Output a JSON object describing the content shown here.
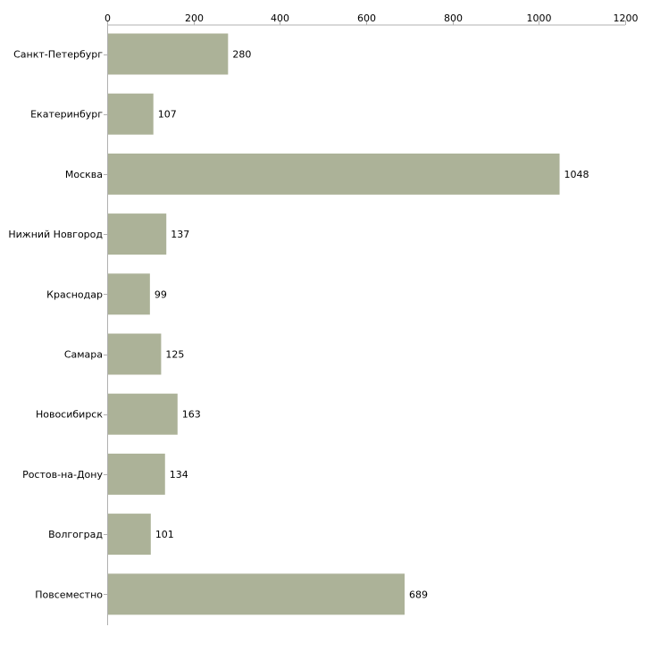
{
  "colors": {
    "bar": "#acb298",
    "axis": "#b0b0b0",
    "text": "#000000"
  },
  "chart_data": {
    "type": "bar",
    "orientation": "horizontal",
    "title": "",
    "xlabel": "",
    "ylabel": "",
    "xlim": [
      0,
      1200
    ],
    "x_ticks": [
      0,
      200,
      400,
      600,
      800,
      1000,
      1200
    ],
    "x_tick_labels": [
      "0",
      "200",
      "400",
      "600",
      "800",
      "1000",
      "1200"
    ],
    "x_axis_position": "top",
    "grid": false,
    "categories": [
      "Санкт-Петербург",
      "Екатеринбург",
      "Москва",
      "Нижний Новгород",
      "Краснодар",
      "Самара",
      "Новосибирск",
      "Ростов-на-Дону",
      "Волгоград",
      "Повсеместно"
    ],
    "values": [
      280,
      107,
      1048,
      137,
      99,
      125,
      163,
      134,
      101,
      689
    ],
    "value_labels": [
      "280",
      "107",
      "1048",
      "137",
      "99",
      "125",
      "163",
      "134",
      "101",
      "689"
    ]
  }
}
